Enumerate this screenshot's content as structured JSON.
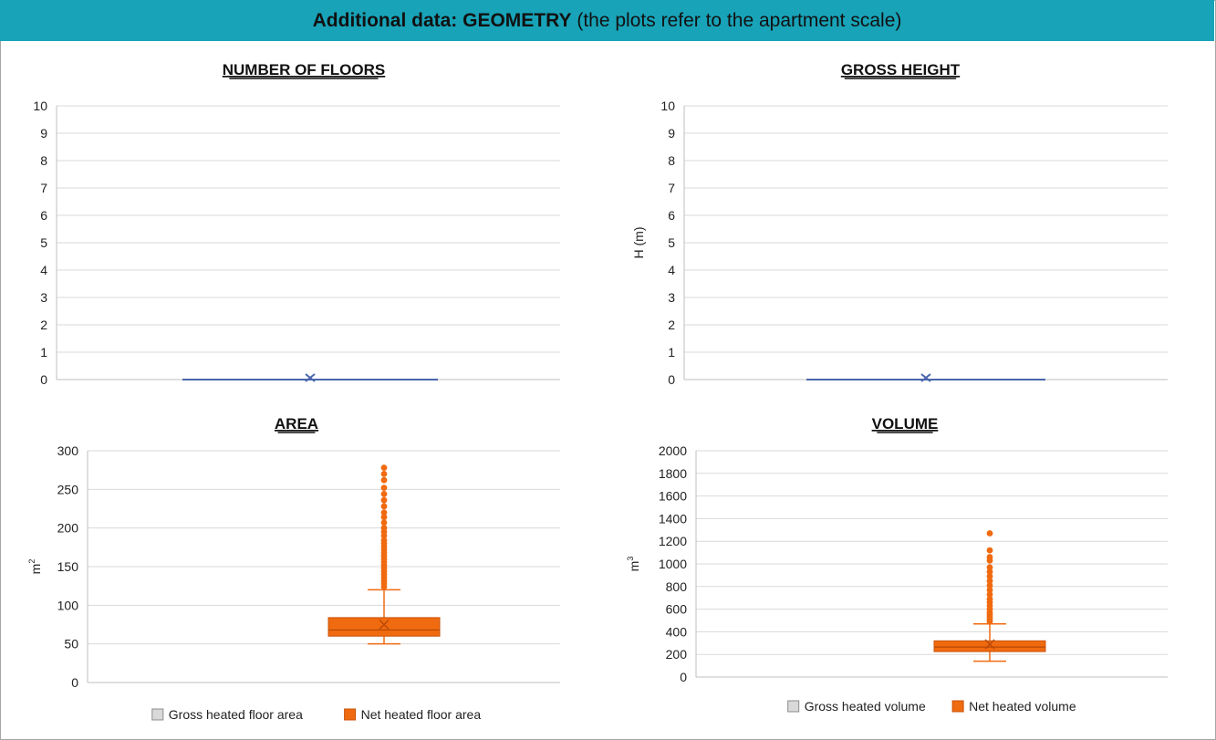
{
  "header": {
    "title_bold": "Additional data: GEOMETRY",
    "title_rest": "(the plots refer to the apartment scale)",
    "bg_color": "#18a3b8"
  },
  "colors": {
    "net": "#f06a10",
    "gross": "#d9d9d9",
    "zero_line": "#4a66ac",
    "grid": "#d9d9d9"
  },
  "chart_data": [
    {
      "type": "boxplot",
      "title": "NUMBER OF FLOORS",
      "ylabel": "",
      "ylim": [
        0,
        10
      ],
      "yticks": [
        0,
        1,
        2,
        3,
        4,
        5,
        6,
        7,
        8,
        9,
        10
      ],
      "box": {
        "min": 0,
        "q1": 0,
        "median": 0,
        "q3": 0,
        "max": 0,
        "mean": 0
      },
      "outliers": [],
      "legend": []
    },
    {
      "type": "boxplot",
      "title": "GROSS HEIGHT",
      "ylabel": "H (m)",
      "ylim": [
        0,
        10
      ],
      "yticks": [
        0,
        1,
        2,
        3,
        4,
        5,
        6,
        7,
        8,
        9,
        10
      ],
      "box": {
        "min": 0,
        "q1": 0,
        "median": 0,
        "q3": 0,
        "max": 0,
        "mean": 0
      },
      "outliers": [],
      "legend": []
    },
    {
      "type": "boxplot",
      "title": "AREA",
      "ylabel": "m2",
      "ylim": [
        0,
        300
      ],
      "yticks": [
        0,
        50,
        100,
        150,
        200,
        250,
        300
      ],
      "box": {
        "min": 50,
        "q1": 60,
        "median": 68,
        "q3": 84,
        "max": 120,
        "mean": 75
      },
      "outliers": [
        124,
        128,
        132,
        136,
        140,
        144,
        148,
        152,
        156,
        160,
        164,
        168,
        172,
        176,
        180,
        184,
        190,
        195,
        200,
        207,
        214,
        220,
        228,
        236,
        244,
        252,
        262,
        270,
        278
      ],
      "legend": [
        "Gross heated floor area",
        "Net heated floor area"
      ]
    },
    {
      "type": "boxplot",
      "title": "VOLUME",
      "ylabel": "m3",
      "ylim": [
        0,
        2000
      ],
      "yticks": [
        0,
        200,
        400,
        600,
        800,
        1000,
        1200,
        1400,
        1600,
        1800,
        2000
      ],
      "box": {
        "min": 140,
        "q1": 225,
        "median": 265,
        "q3": 320,
        "max": 470,
        "mean": 290
      },
      "outliers": [
        490,
        510,
        530,
        550,
        570,
        600,
        630,
        660,
        690,
        730,
        770,
        810,
        850,
        890,
        930,
        970,
        1030,
        1060,
        1120,
        1270
      ],
      "legend": [
        "Gross heated volume",
        "Net heated volume"
      ]
    }
  ]
}
